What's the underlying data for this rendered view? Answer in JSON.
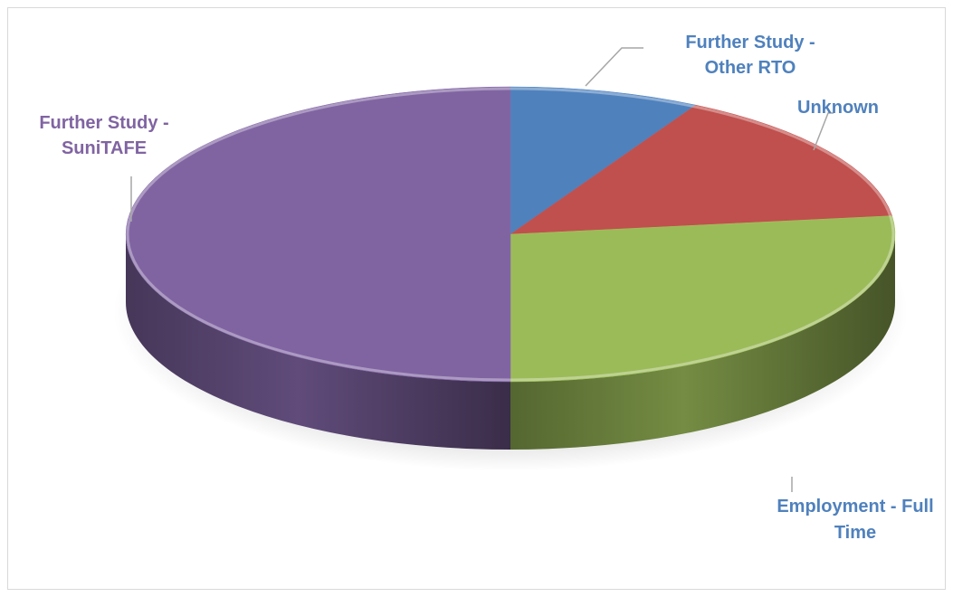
{
  "chart_data": {
    "type": "pie",
    "title": "",
    "style": "3d",
    "slices": [
      {
        "label": "Further Study - Other RTO",
        "label_lines": [
          "Further Study -",
          "Other RTO"
        ],
        "value": 8,
        "color": "#4f81bd",
        "label_color": "#4f81bd"
      },
      {
        "label": "Unknown",
        "label_lines": [
          "Unknown"
        ],
        "value": 15,
        "color": "#c0504d",
        "label_color": "#4f81bd"
      },
      {
        "label": "Employment - Full Time",
        "label_lines": [
          "Employment - Full",
          "Time"
        ],
        "value": 27,
        "color": "#9bbb59",
        "label_color": "#4f81bd"
      },
      {
        "label": "Further Study - SuniTAFE",
        "label_lines": [
          "Further Study -",
          "SuniTAFE"
        ],
        "value": 50,
        "color": "#8064a2",
        "label_color": "#8064a2"
      }
    ],
    "legend": "none"
  }
}
